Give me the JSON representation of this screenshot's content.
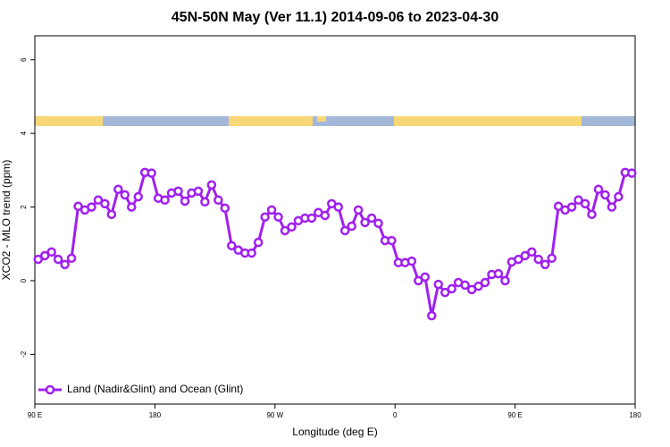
{
  "chart_data": {
    "type": "line",
    "title": "45N-50N May (Ver 11.1)   2014-09-06 to 2023-04-30",
    "x_label": "Longitude (deg E)",
    "y_label": "XCO2 - MLO trend (ppm)",
    "x": [
      92.5,
      97.5,
      102.5,
      107.5,
      112.5,
      117.5,
      122.5,
      127.5,
      132.5,
      137.5,
      142.5,
      147.5,
      152.5,
      157.5,
      162.5,
      167.5,
      172.5,
      177.5,
      182.5,
      187.5,
      192.5,
      197.5,
      202.5,
      207.5,
      212.5,
      217.5,
      222.5,
      227.5,
      232.5,
      237.5,
      242.5,
      247.5,
      252.5,
      257.5,
      262.5,
      267.5,
      272.5,
      277.5,
      282.5,
      287.5,
      292.5,
      297.5,
      302.5,
      307.5,
      312.5,
      317.5,
      322.5,
      327.5,
      332.5,
      337.5,
      342.5,
      347.5,
      352.5,
      357.5,
      362.5,
      367.5,
      372.5,
      377.5,
      382.5,
      387.5,
      392.5,
      397.5,
      402.5,
      407.5,
      412.5,
      417.5,
      422.5,
      427.5,
      432.5,
      437.5,
      442.5,
      447.5,
      452.5,
      457.5,
      462.5,
      467.5,
      472.5,
      477.5,
      482.5,
      487.5,
      492.5,
      497.5,
      502.5,
      507.5,
      512.5,
      517.5,
      522.5,
      527.5,
      532.5,
      537.5
    ],
    "series": [
      {
        "name": "Land (Nadir&Glint) and Ocean (Glint)",
        "color": "#a020f0",
        "values": [
          0.58,
          0.68,
          0.78,
          0.58,
          0.44,
          0.61,
          2.02,
          1.92,
          2.0,
          2.19,
          2.09,
          1.8,
          2.48,
          2.33,
          2.0,
          2.28,
          2.94,
          2.92,
          2.24,
          2.19,
          2.38,
          2.43,
          2.16,
          2.38,
          2.43,
          2.14,
          2.6,
          2.19,
          1.97,
          0.95,
          0.83,
          0.75,
          0.75,
          1.04,
          1.73,
          1.92,
          1.73,
          1.36,
          1.46,
          1.63,
          1.7,
          1.7,
          1.85,
          1.77,
          2.09,
          2.0,
          1.36,
          1.48,
          1.92,
          1.58,
          1.7,
          1.56,
          1.09,
          1.09,
          0.49,
          0.49,
          0.53,
          0.0,
          0.1,
          -0.95,
          -0.1,
          -0.32,
          -0.22,
          -0.05,
          -0.12,
          -0.24,
          -0.15,
          -0.05,
          0.17,
          0.19,
          0.0,
          0.51,
          0.58,
          0.68,
          0.78,
          0.58,
          0.44,
          0.61,
          2.02,
          1.92,
          2.0,
          2.19,
          2.09,
          1.8,
          2.48,
          2.33,
          2.0,
          2.28,
          2.94,
          2.92
        ]
      }
    ],
    "xlim": [
      90,
      540
    ],
    "xticks": [
      {
        "value": 90,
        "label": "90 E"
      },
      180,
      {
        "value": 270,
        "label": "90 W"
      },
      {
        "value": 360,
        "label": "0"
      },
      {
        "value": 450,
        "label": "90 E"
      },
      {
        "value": 540,
        "label": "180"
      }
    ],
    "ylim": [
      -3.35,
      6.65
    ],
    "yticks": [
      -2,
      0,
      2,
      4,
      6
    ],
    "legend": "lower left"
  }
}
